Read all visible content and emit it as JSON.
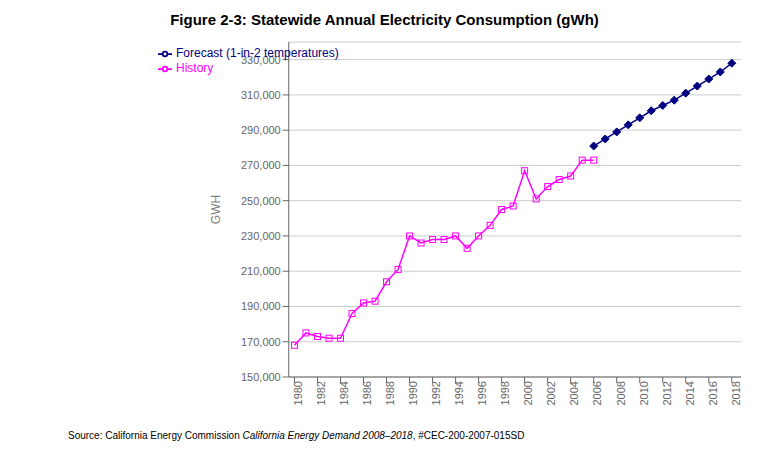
{
  "chart_data": {
    "type": "line",
    "title": "Figure 2-3: Statewide Annual Electricity Consumption (gWh)",
    "y_label": "GWH",
    "annotations": [
      "Source: California Energy Commission ",
      "California Energy Demand 2008–2018",
      ", #CEC-200-2007-015SD"
    ],
    "series": [
      {
        "name": "History",
        "color": "#FF00FF",
        "marker": "square",
        "x": [
          1980,
          1981,
          1982,
          1983,
          1984,
          1985,
          1986,
          1987,
          1988,
          1989,
          1990,
          1991,
          1992,
          1993,
          1994,
          1995,
          1996,
          1997,
          1998,
          1999,
          2000,
          2001,
          2002,
          2003,
          2004,
          2005,
          2006
        ],
        "values": [
          168000,
          175000,
          173000,
          172000,
          172000,
          186000,
          192000,
          193000,
          204000,
          211000,
          230000,
          226000,
          228000,
          228000,
          230000,
          223000,
          230000,
          236000,
          245000,
          247000,
          267000,
          251000,
          258000,
          262000,
          264000,
          273000,
          273000
        ]
      },
      {
        "name": "Forecast (1-in-2 temperatures)",
        "color": "#000080",
        "marker": "diamond",
        "x": [
          2006,
          2007,
          2008,
          2009,
          2010,
          2011,
          2012,
          2013,
          2014,
          2015,
          2016,
          2017,
          2018
        ],
        "values": [
          281000,
          285000,
          289000,
          293000,
          297000,
          301000,
          304000,
          307000,
          311000,
          315000,
          319000,
          323000,
          328000
        ]
      }
    ],
    "xlim": [
      1979.5,
      2018.8
    ],
    "xticks": [
      1980,
      1982,
      1984,
      1986,
      1988,
      1990,
      1992,
      1994,
      1996,
      1998,
      2000,
      2002,
      2004,
      2006,
      2008,
      2010,
      2012,
      2014,
      2016,
      2018
    ],
    "ylim": [
      150000,
      340000
    ],
    "yticks": [
      {
        "value": 150000,
        "label": "150,000"
      },
      {
        "value": 170000,
        "label": "170,000"
      },
      {
        "value": 190000,
        "label": "190,000"
      },
      {
        "value": 210000,
        "label": "210,000"
      },
      {
        "value": 230000,
        "label": "230,000"
      },
      {
        "value": 250000,
        "label": "250,000"
      },
      {
        "value": 270000,
        "label": "270,000"
      },
      {
        "value": 290000,
        "label": "290,000"
      },
      {
        "value": 310000,
        "label": "310,000"
      },
      {
        "value": 330000,
        "label": "330,000"
      }
    ],
    "grid": "y",
    "legend": "upper left"
  }
}
